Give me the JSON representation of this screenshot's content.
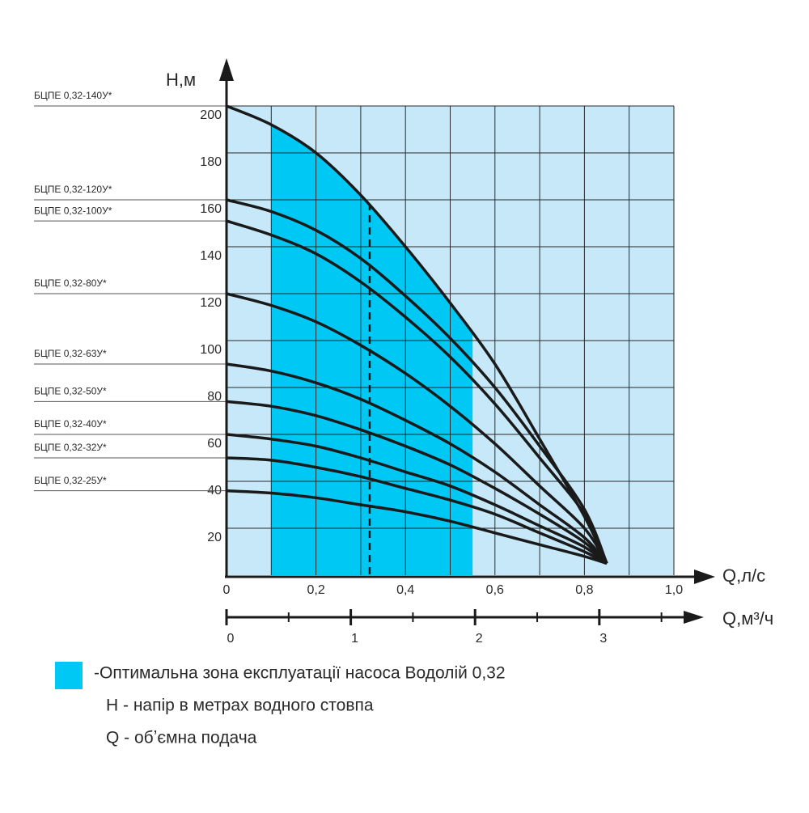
{
  "chart_data": {
    "type": "line",
    "y_label": "H,м",
    "x_label": "Q,л/с",
    "x2_label": "Q,м³/ч",
    "xlim": [
      0,
      1
    ],
    "ylim": [
      0,
      200
    ],
    "xticks": [
      0,
      {
        "value": 0.2,
        "label": "0,2"
      },
      {
        "value": 0.4,
        "label": "0,4"
      },
      {
        "value": 0.6,
        "label": "0,6"
      },
      {
        "value": 0.8,
        "label": "0,8"
      },
      {
        "value": 1.0,
        "label": "1,0"
      }
    ],
    "xgrid": [
      0.1,
      0.2,
      0.3,
      0.4,
      0.5,
      0.6,
      0.7,
      0.8,
      0.9,
      1.0
    ],
    "yticks": [
      20,
      40,
      60,
      80,
      100,
      120,
      140,
      160,
      180,
      200
    ],
    "x2lim": [
      0,
      3.6
    ],
    "x2ticks": [
      0,
      1,
      2,
      3
    ],
    "x2_minor_ticks": [
      0.5,
      1.5,
      2.5,
      3.5
    ],
    "grid": true,
    "background_color": "#c6e8f8",
    "grid_color": "#2a2a2a",
    "optimal_zone": {
      "x": [
        0.1,
        0.55
      ],
      "color": "#00c8f5",
      "label": "-Оптимальна зона експлуатації насоса Водолій 0,32",
      "marker_x": 0.32
    },
    "notes": [
      "H - напір в метрах водного стовпа",
      "Q - обʼємна подача"
    ],
    "x": [
      0,
      0.1,
      0.2,
      0.3,
      0.4,
      0.5,
      0.6,
      0.7,
      0.8,
      0.85
    ],
    "series": [
      {
        "name": "БЦПЕ 0,32-140У*",
        "color": "#1a1a1a",
        "values": [
          200,
          192,
          180,
          162,
          140,
          116,
          90,
          58,
          25,
          5
        ]
      },
      {
        "name": "БЦПЕ 0,32-120У*",
        "color": "#1a1a1a",
        "values": [
          160,
          155,
          147,
          135,
          119,
          101,
          80,
          55,
          28,
          5
        ]
      },
      {
        "name": "БЦПЕ 0,32-100У*",
        "color": "#1a1a1a",
        "values": [
          151,
          145,
          137,
          125,
          110,
          93,
          73,
          50,
          26,
          5
        ]
      },
      {
        "name": "БЦПЕ 0,32-80У*",
        "color": "#1a1a1a",
        "values": [
          120,
          115,
          108,
          98,
          86,
          72,
          56,
          38,
          20,
          5
        ]
      },
      {
        "name": "БЦПЕ 0,32-63У*",
        "color": "#1a1a1a",
        "values": [
          90,
          87,
          82,
          75,
          66,
          56,
          44,
          30,
          16,
          5
        ]
      },
      {
        "name": "БЦПЕ 0,32-50У*",
        "color": "#1a1a1a",
        "values": [
          74,
          72,
          68,
          62,
          55,
          47,
          37,
          26,
          14,
          5
        ]
      },
      {
        "name": "БЦПЕ 0,32-40У*",
        "color": "#1a1a1a",
        "values": [
          60,
          58,
          55,
          50,
          44,
          38,
          30,
          21,
          12,
          5
        ]
      },
      {
        "name": "БЦПЕ 0,32-32У*",
        "color": "#1a1a1a",
        "values": [
          50,
          49,
          46,
          42,
          37,
          32,
          26,
          18,
          10,
          5
        ]
      },
      {
        "name": "БЦПЕ 0,32-25У*",
        "color": "#1a1a1a",
        "values": [
          36,
          35,
          33,
          30,
          27,
          23,
          18,
          13,
          8,
          5
        ]
      }
    ]
  }
}
